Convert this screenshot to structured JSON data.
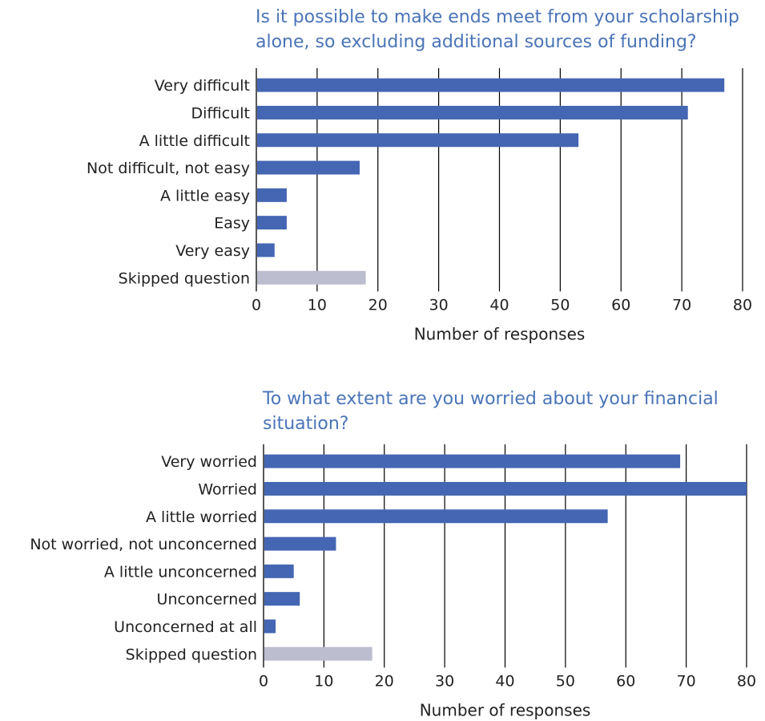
{
  "chart_data": [
    {
      "type": "bar",
      "orientation": "horizontal",
      "title": "Is it possible to make ends meet from your scholarship alone, so excluding additional sources of funding?",
      "title_lines": [
        "Is it possible to make ends meet from your scholarship",
        "alone, so excluding additional sources of funding?"
      ],
      "categories": [
        "Very difficult",
        "Difficult",
        "A little difficult",
        "Not difficult, not easy",
        "A little easy",
        "Easy",
        "Very easy",
        "Skipped question"
      ],
      "values": [
        77,
        71,
        53,
        17,
        5,
        5,
        3,
        18
      ],
      "colors": [
        "#4466b3",
        "#4466b3",
        "#4466b3",
        "#4466b3",
        "#4466b3",
        "#4466b3",
        "#4466b3",
        "#bcbdcf"
      ],
      "xlabel": "Number of responses",
      "ylabel": "",
      "xlim": [
        0,
        80
      ],
      "xticks": [
        0,
        10,
        20,
        30,
        40,
        50,
        60,
        70,
        80
      ],
      "grid": "vertical",
      "legend": "none"
    },
    {
      "type": "bar",
      "orientation": "horizontal",
      "title": "To what extent are you worried about your financial situation?",
      "title_lines": [
        "To what extent are you worried about your financial",
        "situation?"
      ],
      "categories": [
        "Very worried",
        "Worried",
        "A little worried",
        "Not worried, not unconcerned",
        "A little unconcerned",
        "Unconcerned",
        "Unconcerned at all",
        "Skipped question"
      ],
      "values": [
        69,
        80,
        57,
        12,
        5,
        6,
        2,
        18
      ],
      "colors": [
        "#4466b3",
        "#4466b3",
        "#4466b3",
        "#4466b3",
        "#4466b3",
        "#4466b3",
        "#4466b3",
        "#bcbdcf"
      ],
      "xlabel": "Number of responses",
      "ylabel": "",
      "xlim": [
        0,
        80
      ],
      "xticks": [
        0,
        10,
        20,
        30,
        40,
        50,
        60,
        70,
        80
      ],
      "grid": "vertical",
      "legend": "none"
    }
  ]
}
